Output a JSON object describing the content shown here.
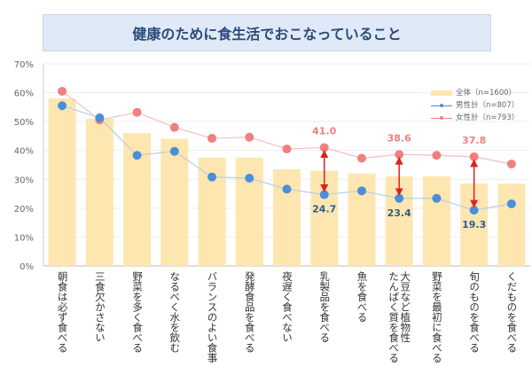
{
  "title": "健康のために食生活でおこなっていること",
  "chart_data": {
    "type": "bar",
    "title": "健康のために食生活でおこなっていること",
    "categories": [
      "朝食は必ず食べる",
      "三食欠かさない",
      "野菜を多く食べる",
      "なるべく水を飲む",
      "バランスのよい食事",
      "発酵食品を食べる",
      "夜遅く食べない",
      "乳製品を食べる",
      "魚を食べる",
      "大豆など植物性たんぱく質を食べる",
      "野菜を最初に食べる",
      "旬のものを食べる",
      "くだものを食べる"
    ],
    "category_lines": [
      [
        "朝食は必ず食べる"
      ],
      [
        "三食欠かさない"
      ],
      [
        "野菜を多く食べる"
      ],
      [
        "なるべく水を飲む"
      ],
      [
        "バランスのよい食事"
      ],
      [
        "発酵食品を食べる"
      ],
      [
        "夜遅く食べない"
      ],
      [
        "乳製品を食べる"
      ],
      [
        "魚を食べる"
      ],
      [
        "大豆など植物性",
        "たんぱく質を食べる"
      ],
      [
        "野菜を最初に食べる"
      ],
      [
        "旬のものを食べる"
      ],
      [
        "くだものを食べる"
      ]
    ],
    "ylim": [
      0,
      70
    ],
    "yticks": [
      "0%",
      "10%",
      "20%",
      "30%",
      "40%",
      "50%",
      "60%",
      "70%"
    ],
    "grid": true,
    "legend_position": "top-right",
    "series": [
      {
        "name": "全体（n=1600）",
        "type": "bar",
        "color": "#fde6b0",
        "values": [
          58,
          51,
          46,
          44,
          37.5,
          37.5,
          33.5,
          33,
          32,
          31,
          31,
          28.5,
          28.5
        ]
      },
      {
        "name": "男性計（n=807）",
        "type": "line",
        "color": "#4a8fd8",
        "values": [
          55.5,
          51.3,
          38.3,
          39.7,
          30.8,
          30.4,
          26.6,
          24.7,
          26,
          23.4,
          23.4,
          19.3,
          21.5
        ]
      },
      {
        "name": "女性計（n=793）",
        "type": "line",
        "color": "#f08080",
        "values": [
          60.5,
          50.6,
          53.2,
          48,
          44.2,
          44.6,
          40.5,
          41.0,
          37.3,
          38.6,
          38.3,
          37.8,
          35.3
        ]
      }
    ],
    "annotations": [
      {
        "index": 7,
        "female": "41.0",
        "male": "24.7"
      },
      {
        "index": 9,
        "female": "38.6",
        "male": "23.4"
      },
      {
        "index": 11,
        "female": "37.8",
        "male": "19.3"
      }
    ]
  }
}
